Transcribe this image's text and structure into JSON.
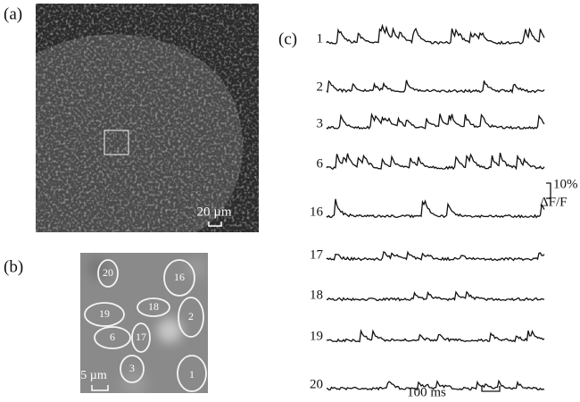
{
  "panel_a": {
    "label": "(a)",
    "scale_bar": "20 µm"
  },
  "panel_b": {
    "label": "(b)",
    "rois": [
      "20",
      "16",
      "19",
      "18",
      "2",
      "6",
      "17",
      "3",
      "1"
    ],
    "scale_bar": "5 µm"
  },
  "panel_c": {
    "label": "(c)",
    "traces": [
      "1",
      "2",
      "3",
      "6",
      "16",
      "17",
      "18",
      "19",
      "20"
    ],
    "amplitude_bar": "10%",
    "amplitude_unit": "ΔF/F",
    "time_bar": "100 ms"
  }
}
